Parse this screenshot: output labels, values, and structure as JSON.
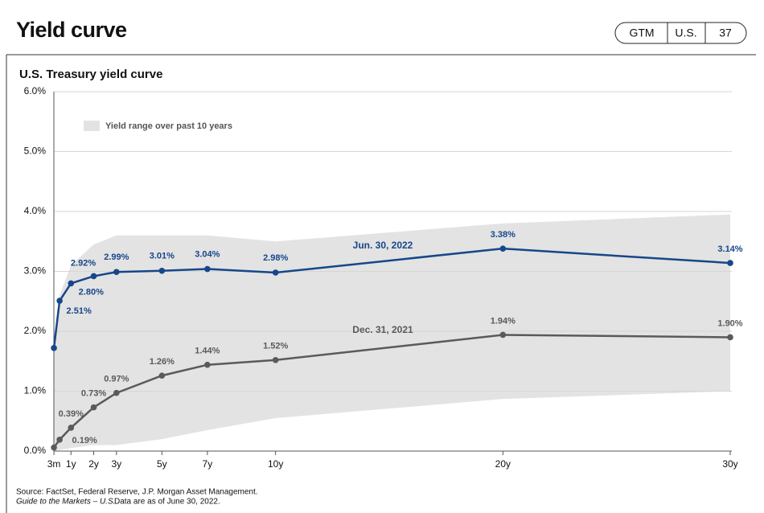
{
  "page_title": "Yield curve",
  "tags": [
    "GTM",
    "U.S.",
    "37"
  ],
  "footnotes": [
    "Source: FactSet, Federal Reserve, J.P. Morgan Asset Management.",
    "Guide to the Markets – U.S.",
    "Data are as of June 30, 2022."
  ],
  "chart_data": {
    "type": "line",
    "title": "U.S. Treasury yield curve",
    "x": [
      0.25,
      0.5,
      1,
      2,
      3,
      5,
      7,
      10,
      20,
      30
    ],
    "xlim": [
      0,
      30
    ],
    "xticks": [
      {
        "value": 0.25,
        "label": "3m"
      },
      {
        "value": 1,
        "label": "1y"
      },
      {
        "value": 2,
        "label": "2y"
      },
      {
        "value": 3,
        "label": "3y"
      },
      {
        "value": 5,
        "label": "5y"
      },
      {
        "value": 7,
        "label": "7y"
      },
      {
        "value": 10,
        "label": "10y"
      },
      {
        "value": 20,
        "label": "20y"
      },
      {
        "value": 30,
        "label": "30y"
      }
    ],
    "ylim": [
      0,
      6
    ],
    "yticks": [
      {
        "value": 0,
        "label": "0.0%"
      },
      {
        "value": 1,
        "label": "1.0%"
      },
      {
        "value": 2,
        "label": "2.0%"
      },
      {
        "value": 3,
        "label": "3.0%"
      },
      {
        "value": 4,
        "label": "4.0%"
      },
      {
        "value": 5,
        "label": "5.0%"
      },
      {
        "value": 6,
        "label": "6.0%"
      }
    ],
    "grid": true,
    "band": {
      "name": "Yield range over past 10 years",
      "color": "#e3e3e3",
      "upper": [
        1.9,
        2.6,
        3.1,
        3.45,
        3.6,
        3.6,
        3.6,
        3.5,
        3.8,
        3.95
      ],
      "lower": [
        0.0,
        0.02,
        0.05,
        0.1,
        0.1,
        0.2,
        0.35,
        0.55,
        0.87,
        1.0
      ]
    },
    "series": [
      {
        "name": "Jun. 30, 2022",
        "color": "#17468a",
        "values": [
          1.72,
          2.51,
          2.8,
          2.92,
          2.99,
          3.01,
          3.04,
          2.98,
          3.38,
          3.14
        ],
        "value_labels": [
          null,
          "2.51%",
          "2.80%",
          "2.92%",
          "2.99%",
          "3.01%",
          "3.04%",
          "2.98%",
          "3.38%",
          "3.14%"
        ]
      },
      {
        "name": "Dec. 31, 2021",
        "color": "#5a5a5a",
        "values": [
          0.06,
          0.19,
          0.39,
          0.73,
          0.97,
          1.26,
          1.44,
          1.52,
          1.94,
          1.9
        ],
        "value_labels": [
          null,
          "0.19%",
          "0.39%",
          "0.73%",
          "0.97%",
          "1.26%",
          "1.44%",
          "1.52%",
          "1.94%",
          "1.90%"
        ]
      }
    ]
  }
}
